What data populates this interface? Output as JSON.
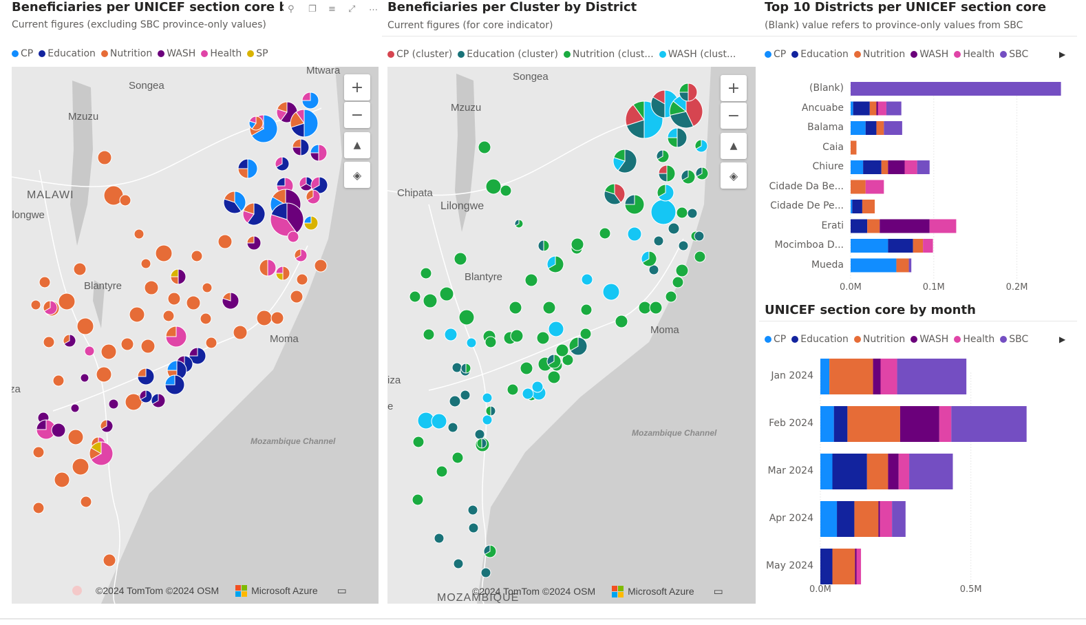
{
  "colors": {
    "cp": "#118dff",
    "education": "#12239e",
    "nutrition": "#e66c37",
    "wash": "#6b007b",
    "health": "#e044a7",
    "sp": "#d9b300",
    "sbc": "#744ec2",
    "cp_cluster": "#d64550",
    "education_cluster": "#197278",
    "nutrition_cluster": "#1aab40",
    "wash_cluster": "#15c6f4"
  },
  "panel1": {
    "title": "Beneficiaries per UNICEF section core by Distr",
    "subtitle": "Current figures (excluding SBC province-only values)",
    "legend": [
      {
        "label": "CP",
        "color": "#118dff"
      },
      {
        "label": "Education",
        "color": "#12239e"
      },
      {
        "label": "Nutrition",
        "color": "#e66c37"
      },
      {
        "label": "WASH",
        "color": "#6b007b"
      },
      {
        "label": "Health",
        "color": "#e044a7"
      },
      {
        "label": "SP",
        "color": "#d9b300"
      }
    ],
    "places": {
      "mtwara": "Mtwara",
      "songea": "Songea",
      "mzuzu": "Mzuzu",
      "malawi": "MALAWI",
      "lilongwe": "ilongwe",
      "blantyre": "Blantyre",
      "moma": "Moma",
      "za": "za"
    },
    "sea": "Mozambique Channel",
    "footer": {
      "copyright": "©2024 TomTom ©2024 OSM",
      "brand": "Microsoft Azure"
    },
    "header_icons": [
      "pin-icon",
      "copy-icon",
      "filter-icon",
      "focus-mode-icon",
      "more-options-icon"
    ]
  },
  "panel2": {
    "title": "Beneficiaries per Cluster by District",
    "subtitle": "Current figures (for core indicator)",
    "legend": [
      {
        "label": "CP (cluster)",
        "color": "#d64550"
      },
      {
        "label": "Education (cluster)",
        "color": "#197278"
      },
      {
        "label": "Nutrition (clust...",
        "color": "#1aab40"
      },
      {
        "label": "WASH (clust...",
        "color": "#15c6f4"
      }
    ],
    "places": {
      "songea": "Songea",
      "mzuzu": "Mzuzu",
      "chipata": "Chipata",
      "lilongwe": "Lilongwe",
      "blantyre": "Blantyre",
      "moma": "Moma",
      "iza": "iza",
      "e": "e",
      "mozambique": "MOZAMBIQUE"
    },
    "sea": "Mozambique Channel",
    "footer": {
      "copyright": "©2024 TomTom ©2024 OSM",
      "brand": "Microsoft Azure"
    }
  },
  "map_controls": {
    "zoom_in": "+",
    "zoom_out": "−"
  },
  "panel3": {
    "title": "Top 10 Districts per UNICEF section core",
    "subtitle": "(Blank) value refers to province-only values from SBC",
    "legend": [
      {
        "label": "CP",
        "color": "#118dff"
      },
      {
        "label": "Education",
        "color": "#12239e"
      },
      {
        "label": "Nutrition",
        "color": "#e66c37"
      },
      {
        "label": "WASH",
        "color": "#6b007b"
      },
      {
        "label": "Health",
        "color": "#e044a7"
      },
      {
        "label": "SBC",
        "color": "#744ec2"
      }
    ]
  },
  "panel4": {
    "title": "UNICEF section core by month",
    "legend": [
      {
        "label": "CP",
        "color": "#118dff"
      },
      {
        "label": "Education",
        "color": "#12239e"
      },
      {
        "label": "Nutrition",
        "color": "#e66c37"
      },
      {
        "label": "WASH",
        "color": "#6b007b"
      },
      {
        "label": "Health",
        "color": "#e044a7"
      },
      {
        "label": "SBC",
        "color": "#744ec2"
      }
    ]
  },
  "chart_data": [
    {
      "type": "bar",
      "orientation": "horizontal-stacked",
      "title": "Top 10 Districts per UNICEF section core",
      "categories": [
        "(Blank)",
        "Ancuabe",
        "Balama",
        "Caia",
        "Chiure",
        "Cidade Da Be...",
        "Cidade De Pe...",
        "Erati",
        "Mocimboa D...",
        "Mueda"
      ],
      "xlim": [
        0,
        0.25
      ],
      "ticks": [
        "0.0M",
        "0.1M",
        "0.2M"
      ],
      "tick_values": [
        0,
        0.1,
        0.2
      ],
      "series": [
        {
          "name": "CP",
          "values": [
            0,
            0.003,
            0.018,
            0,
            0.015,
            0,
            0.002,
            0,
            0.045,
            0.055
          ]
        },
        {
          "name": "Education",
          "values": [
            0,
            0.02,
            0.013,
            0,
            0.022,
            0,
            0.012,
            0.02,
            0.03,
            0
          ]
        },
        {
          "name": "Nutrition",
          "values": [
            0,
            0.008,
            0.009,
            0.007,
            0.008,
            0.018,
            0.015,
            0.015,
            0.012,
            0.015
          ]
        },
        {
          "name": "WASH",
          "values": [
            0,
            0.002,
            0,
            0,
            0.02,
            0,
            0,
            0.06,
            0,
            0
          ]
        },
        {
          "name": "Health",
          "values": [
            0,
            0.01,
            0,
            0,
            0.015,
            0.022,
            0,
            0.032,
            0.012,
            0
          ]
        },
        {
          "name": "SBC",
          "values": [
            0.253,
            0.018,
            0.022,
            0,
            0.015,
            0,
            0,
            0,
            0,
            0.003
          ]
        }
      ]
    },
    {
      "type": "bar",
      "orientation": "horizontal-stacked",
      "title": "UNICEF section core by month",
      "categories": [
        "Jan 2024",
        "Feb 2024",
        "Mar 2024",
        "Apr 2024",
        "May 2024"
      ],
      "xlim": [
        0,
        0.8
      ],
      "ticks": [
        "0.0M",
        "0.5M"
      ],
      "tick_values": [
        0,
        0.5
      ],
      "series": [
        {
          "name": "CP",
          "values": [
            0.03,
            0.045,
            0.04,
            0.055,
            0
          ]
        },
        {
          "name": "Education",
          "values": [
            0,
            0.045,
            0.115,
            0.058,
            0.04
          ]
        },
        {
          "name": "Nutrition",
          "values": [
            0.145,
            0.175,
            0.07,
            0.08,
            0.075
          ]
        },
        {
          "name": "WASH",
          "values": [
            0.025,
            0.13,
            0.035,
            0.005,
            0.005
          ]
        },
        {
          "name": "Health",
          "values": [
            0.055,
            0.04,
            0.035,
            0.04,
            0.015
          ]
        },
        {
          "name": "SBC",
          "values": [
            0.23,
            0.25,
            0.145,
            0.045,
            0
          ]
        }
      ]
    }
  ]
}
